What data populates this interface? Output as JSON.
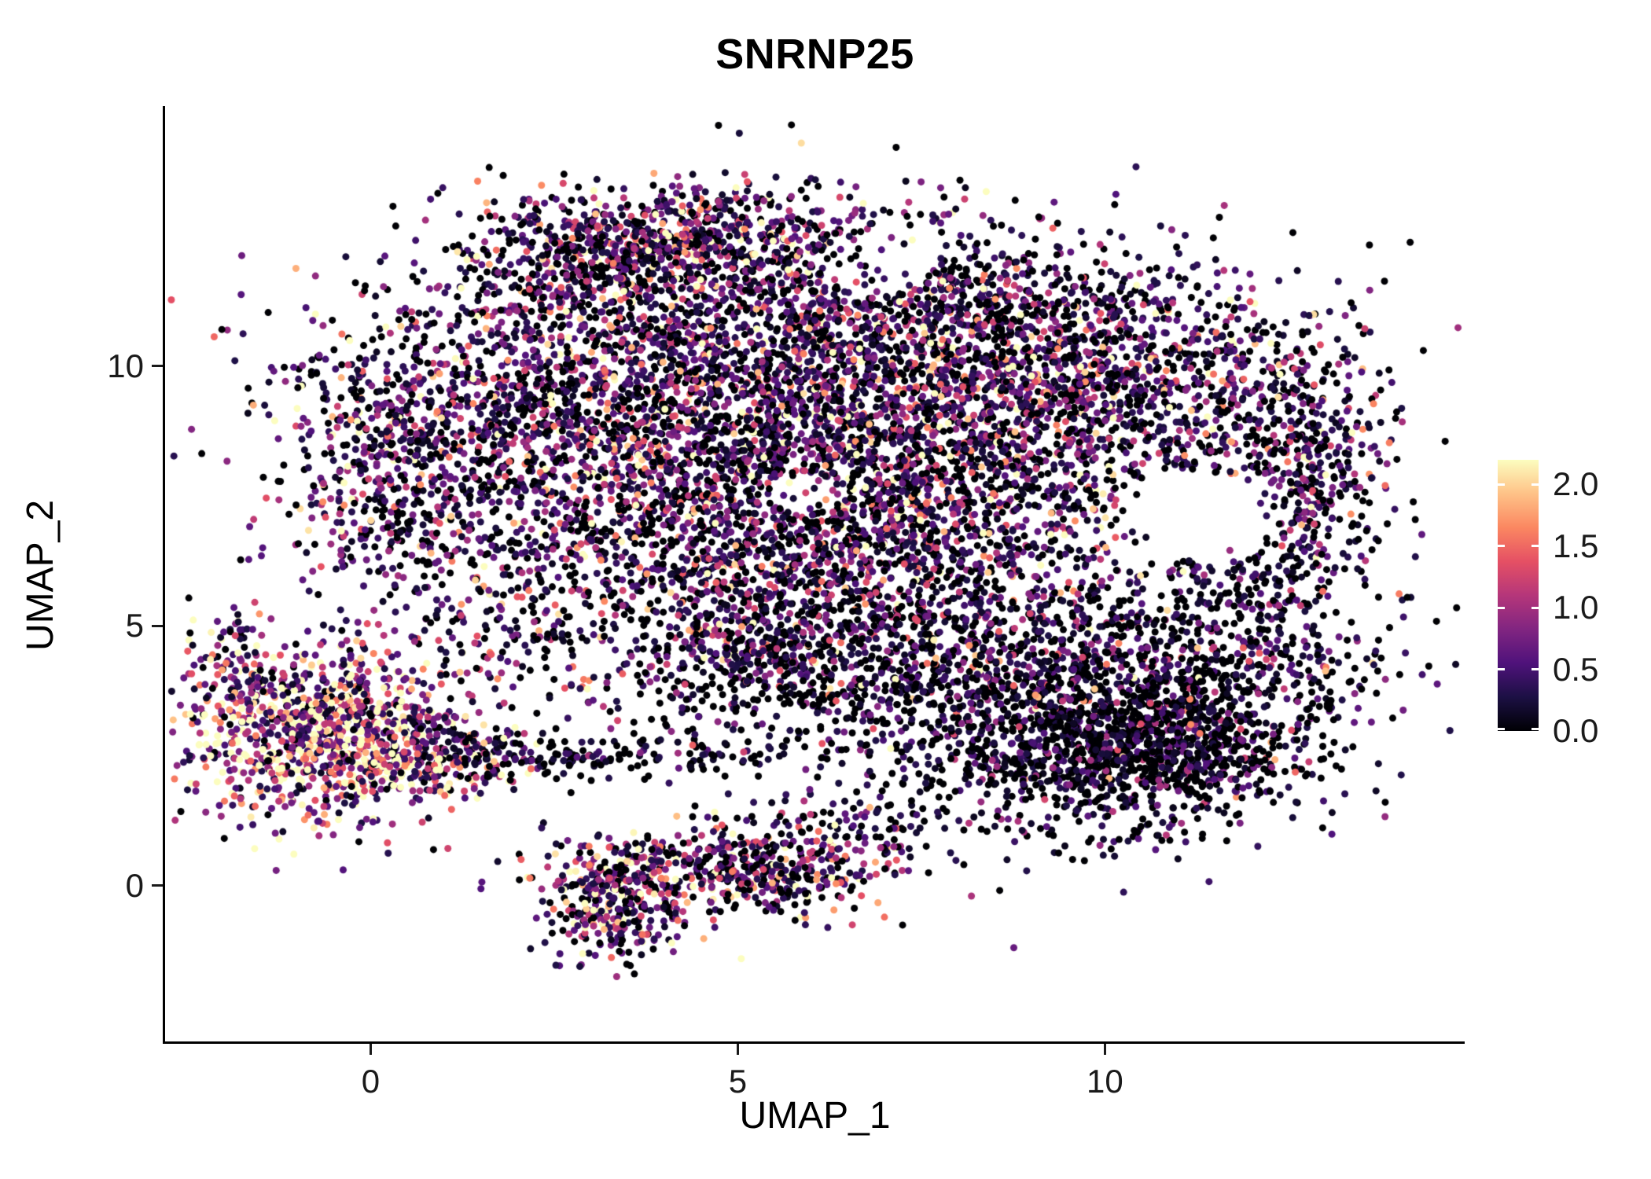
{
  "title": "SNRNP25",
  "axes": {
    "x_label": "UMAP_1",
    "y_label": "UMAP_2",
    "x_tick_labels": [
      "0",
      "5",
      "10"
    ],
    "y_tick_labels": [
      "0",
      "5",
      "10"
    ]
  },
  "legend": {
    "position": "right",
    "tick_labels": [
      "2.0",
      "1.5",
      "1.0",
      "0.5",
      "0.0"
    ],
    "tick_values": [
      2.0,
      1.5,
      1.0,
      0.5,
      0.0
    ]
  },
  "chart_data": {
    "type": "scatter",
    "title": "SNRNP25",
    "xlabel": "UMAP_1",
    "ylabel": "UMAP_2",
    "xlim": [
      -2.8,
      14.9
    ],
    "ylim": [
      -3.0,
      15.0
    ],
    "x_ticks": [
      0,
      5,
      10
    ],
    "y_ticks": [
      0,
      5,
      10
    ],
    "grid": false,
    "legend_position": "right",
    "point_radius": 4.5,
    "seed": 42,
    "color_range": [
      0,
      2.2
    ],
    "colormap": {
      "name": "magma",
      "stops": [
        [
          0.0,
          "#000004"
        ],
        [
          0.125,
          "#1c1044"
        ],
        [
          0.25,
          "#4f127b"
        ],
        [
          0.375,
          "#812581"
        ],
        [
          0.5,
          "#b5367a"
        ],
        [
          0.625,
          "#e55064"
        ],
        [
          0.75,
          "#fb8761"
        ],
        [
          0.875,
          "#fec287"
        ],
        [
          1.0,
          "#fcfdbf"
        ]
      ]
    },
    "clusters": [
      {
        "cx": 3.2,
        "cy": 9.2,
        "sx": 1.9,
        "sy": 1.5,
        "n": 2000,
        "p0": 0.32,
        "mean": 0.7
      },
      {
        "cx": 7.2,
        "cy": 8.6,
        "sx": 1.9,
        "sy": 1.7,
        "n": 2200,
        "p0": 0.32,
        "mean": 0.7
      },
      {
        "cx": 5.2,
        "cy": 6.2,
        "sx": 2.2,
        "sy": 1.1,
        "n": 1000,
        "p0": 0.35,
        "mean": 0.65
      },
      {
        "cx": 10.3,
        "cy": 9.8,
        "sx": 1.4,
        "sy": 1.1,
        "n": 800,
        "p0": 0.33,
        "mean": 0.65
      },
      {
        "cx": 12.3,
        "cy": 7.6,
        "sx": 0.7,
        "sy": 1.6,
        "n": 450,
        "p0": 0.35,
        "mean": 0.6
      },
      {
        "cx": 13.0,
        "cy": 7.8,
        "sx": 0.45,
        "sy": 0.8,
        "n": 140,
        "p0": 0.35,
        "mean": 0.6
      },
      {
        "cx": 4.6,
        "cy": 12.4,
        "sx": 1.4,
        "sy": 0.55,
        "n": 550,
        "p0": 0.3,
        "mean": 0.7
      },
      {
        "cx": 3.0,
        "cy": 12.2,
        "sx": 0.8,
        "sy": 0.6,
        "n": 320,
        "p0": 0.3,
        "mean": 0.7
      },
      {
        "cx": 5.8,
        "cy": 11.2,
        "sx": 1.8,
        "sy": 0.8,
        "n": 450,
        "p0": 0.3,
        "mean": 0.65
      },
      {
        "cx": 8.3,
        "cy": 10.9,
        "sx": 1.2,
        "sy": 0.7,
        "n": 330,
        "p0": 0.32,
        "mean": 0.6
      },
      {
        "cx": 0.3,
        "cy": 7.9,
        "sx": 0.75,
        "sy": 1.3,
        "n": 420,
        "p0": 0.3,
        "mean": 0.75
      },
      {
        "cx": 9.6,
        "cy": 2.9,
        "sx": 1.5,
        "sy": 0.95,
        "n": 1300,
        "p0": 0.55,
        "mean": 0.35
      },
      {
        "cx": 11.0,
        "cy": 2.6,
        "sx": 0.9,
        "sy": 0.7,
        "n": 380,
        "p0": 0.55,
        "mean": 0.35
      },
      {
        "cx": 11.3,
        "cy": 4.3,
        "sx": 1.3,
        "sy": 1.1,
        "n": 650,
        "p0": 0.45,
        "mean": 0.45
      },
      {
        "cx": 7.8,
        "cy": 4.9,
        "sx": 1.3,
        "sy": 0.8,
        "n": 420,
        "p0": 0.4,
        "mean": 0.55
      },
      {
        "cx": 6.0,
        "cy": 3.9,
        "sx": 1.5,
        "sy": 0.45,
        "n": 180,
        "p0": 0.5,
        "mean": 0.45
      },
      {
        "cx": 5.0,
        "cy": 4.8,
        "sx": 0.6,
        "sy": 0.45,
        "n": 230,
        "p0": 0.35,
        "mean": 0.65
      },
      {
        "cx": 4.0,
        "cy": 3.2,
        "sx": 1.2,
        "sy": 0.5,
        "n": 60,
        "p0": 0.6,
        "mean": 0.35
      },
      {
        "cx": 2.0,
        "cy": 4.9,
        "sx": 0.8,
        "sy": 0.7,
        "n": 110,
        "p0": 0.4,
        "mean": 0.55
      },
      {
        "cx": 6.5,
        "cy": 8.0,
        "sx": 3.8,
        "sy": 2.6,
        "n": 500,
        "p0": 0.35,
        "mean": 0.6
      },
      {
        "cx": -0.6,
        "cy": 2.9,
        "sx": 0.95,
        "sy": 0.85,
        "n": 1050,
        "p0": 0.06,
        "mean": 1.3
      },
      {
        "cx": -1.9,
        "cy": 4.3,
        "sx": 0.35,
        "sy": 0.6,
        "n": 80,
        "p0": 0.2,
        "mean": 0.8
      },
      {
        "cx": 0.8,
        "cy": 2.4,
        "sx": 0.5,
        "sy": 0.35,
        "n": 140,
        "p0": 0.12,
        "mean": 1.1
      },
      {
        "cx": 4.4,
        "cy": 0.3,
        "sx": 1.0,
        "sy": 0.5,
        "n": 400,
        "p0": 0.25,
        "mean": 0.85
      },
      {
        "cx": 3.3,
        "cy": -0.5,
        "sx": 0.45,
        "sy": 0.5,
        "n": 250,
        "p0": 0.2,
        "mean": 0.9
      },
      {
        "cx": 5.9,
        "cy": 0.4,
        "sx": 0.7,
        "sy": 0.45,
        "n": 190,
        "p0": 0.3,
        "mean": 0.75
      },
      {
        "cx": 3.0,
        "cy": 2.45,
        "sx": 1.6,
        "sy": 0.18,
        "n": 150,
        "p0": 0.55,
        "mean": 0.4
      },
      {
        "cx": 1.6,
        "cy": 2.6,
        "sx": 0.5,
        "sy": 0.3,
        "n": 80,
        "p0": 0.4,
        "mean": 0.5
      },
      {
        "cx": 6.8,
        "cy": 1.1,
        "sx": 0.6,
        "sy": 0.4,
        "n": 60,
        "p0": 0.4,
        "mean": 0.5
      }
    ],
    "voids": [
      {
        "cx": 11.35,
        "cy": 7.1,
        "rx": 0.95,
        "ry": 0.85,
        "keep": 0.07
      },
      {
        "cx": 5.9,
        "cy": 7.55,
        "rx": 0.45,
        "ry": 0.4,
        "keep": 0.15
      },
      {
        "cx": 6.9,
        "cy": 11.95,
        "rx": 0.75,
        "ry": 0.6,
        "keep": 0.2
      }
    ]
  }
}
